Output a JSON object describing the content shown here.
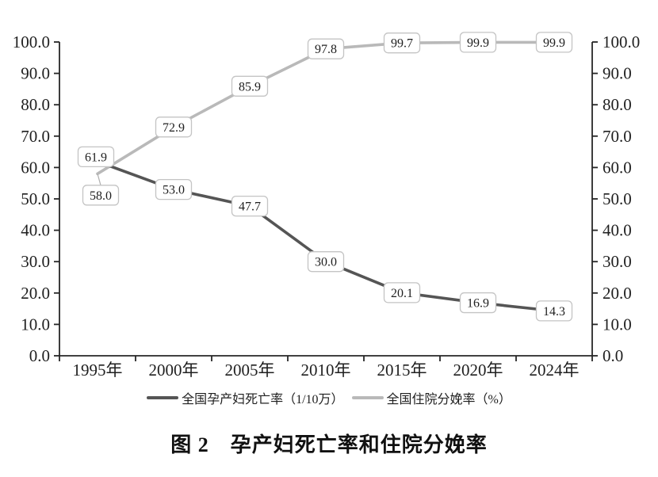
{
  "figure": {
    "caption": "图 2　孕产妇死亡率和住院分娩率"
  },
  "chart_data": {
    "type": "line",
    "title": "图 2　孕产妇死亡率和住院分娩率",
    "categories": [
      "1995年",
      "2000年",
      "2005年",
      "2010年",
      "2015年",
      "2020年",
      "2024年"
    ],
    "series": [
      {
        "name": "全国孕产妇死亡率（1/10万）",
        "values": [
          61.9,
          53.0,
          47.7,
          30.0,
          20.1,
          16.9,
          14.3
        ],
        "labels": [
          "61.9",
          "53.0",
          "47.7",
          "30.0",
          "20.1",
          "16.9",
          "14.3"
        ],
        "color": "#555555"
      },
      {
        "name": "全国住院分娩率（%）",
        "values": [
          58.0,
          72.9,
          85.9,
          97.8,
          99.7,
          99.9,
          99.9
        ],
        "labels": [
          "58.0",
          "72.9",
          "85.9",
          "97.8",
          "99.7",
          "99.9",
          "99.9"
        ],
        "color": "#b9b9b9"
      }
    ],
    "y_axis": {
      "min": 0,
      "max": 100,
      "step": 10,
      "tick_labels": [
        "0.0",
        "10.0",
        "20.0",
        "30.0",
        "40.0",
        "50.0",
        "60.0",
        "70.0",
        "80.0",
        "90.0",
        "100.0"
      ]
    },
    "xlabel": "",
    "ylabel": "",
    "grid": false,
    "legend_position": "bottom",
    "axes_shown": {
      "left": true,
      "right": true,
      "bottom": true,
      "top": false
    },
    "data_label_style": {
      "box_fill": "#ffffff",
      "box_border": "#c4c4c4",
      "text_color": "#1f1f1f"
    },
    "axis_color": "#262626"
  }
}
